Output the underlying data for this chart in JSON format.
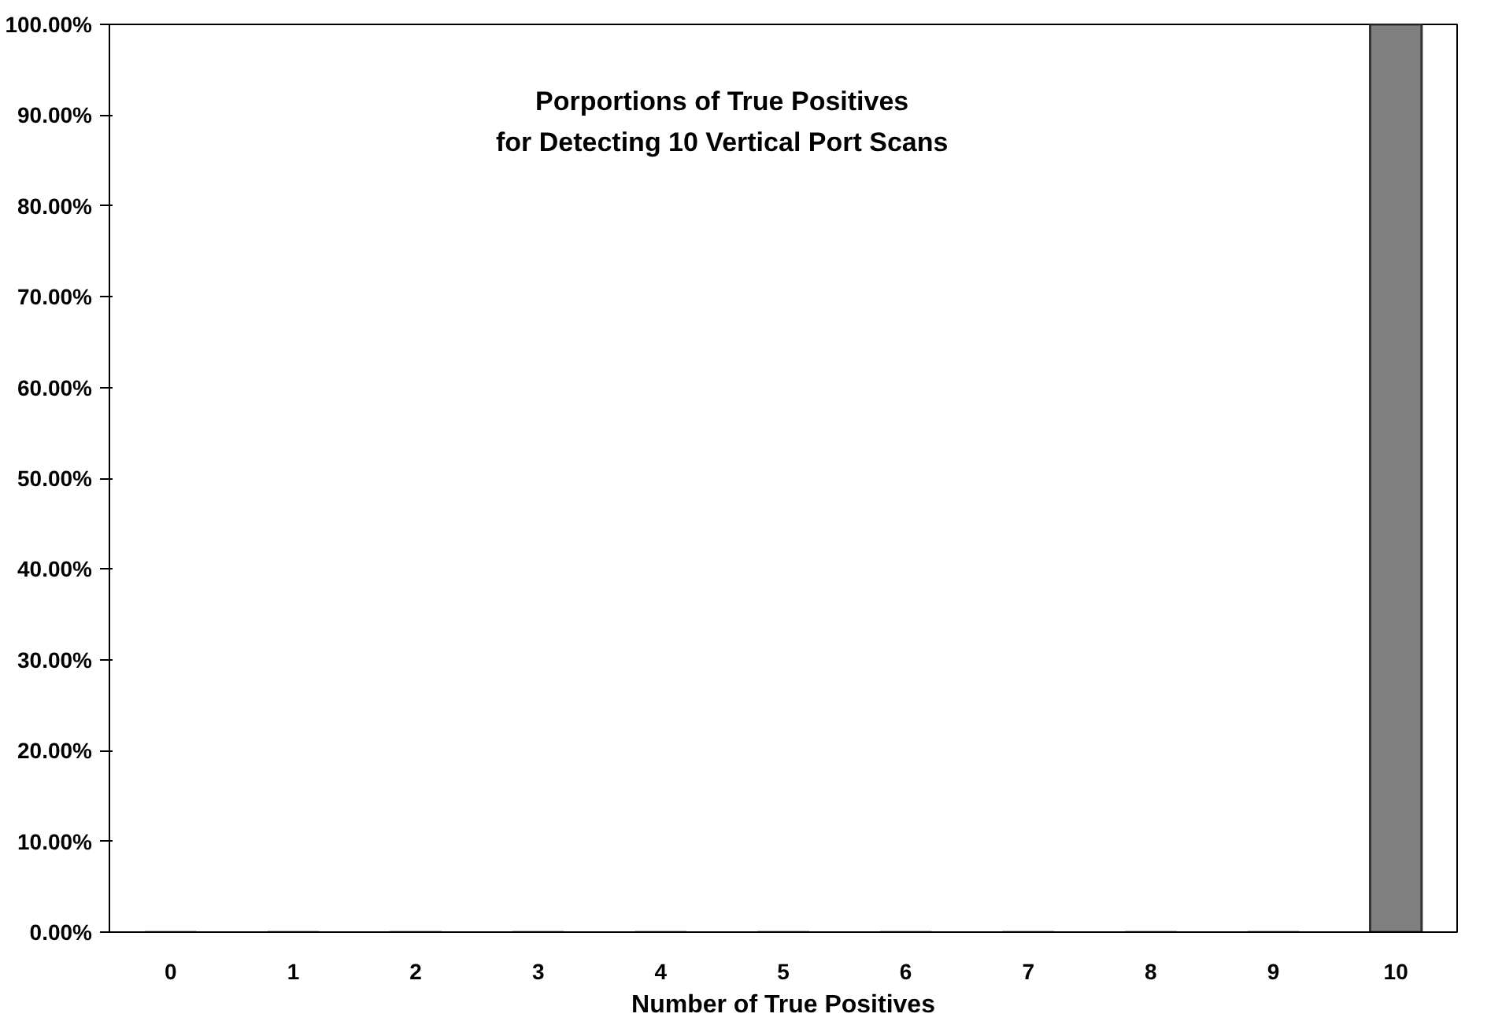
{
  "chart_data": {
    "type": "bar",
    "title": "Porportions of True Positives\nfor Detecting 10 Vertical Port Scans",
    "xlabel": "Number of True Positives",
    "categories": [
      "0",
      "1",
      "2",
      "3",
      "4",
      "5",
      "6",
      "7",
      "8",
      "9",
      "10"
    ],
    "values": [
      0,
      0,
      0,
      0,
      0,
      0,
      0,
      0,
      0,
      0,
      100
    ],
    "color": "#808080",
    "ylim": [
      0,
      100
    ],
    "yticks": [
      {
        "value": 0,
        "label": "0.00%"
      },
      {
        "value": 10,
        "label": "10.00%"
      },
      {
        "value": 20,
        "label": "20.00%"
      },
      {
        "value": 30,
        "label": "30.00%"
      },
      {
        "value": 40,
        "label": "40.00%"
      },
      {
        "value": 50,
        "label": "50.00%"
      },
      {
        "value": 60,
        "label": "60.00%"
      },
      {
        "value": 70,
        "label": "70.00%"
      },
      {
        "value": 80,
        "label": "80.00%"
      },
      {
        "value": 90,
        "label": "90.00%"
      },
      {
        "value": 100,
        "label": "100.00%"
      }
    ],
    "grid": false
  }
}
